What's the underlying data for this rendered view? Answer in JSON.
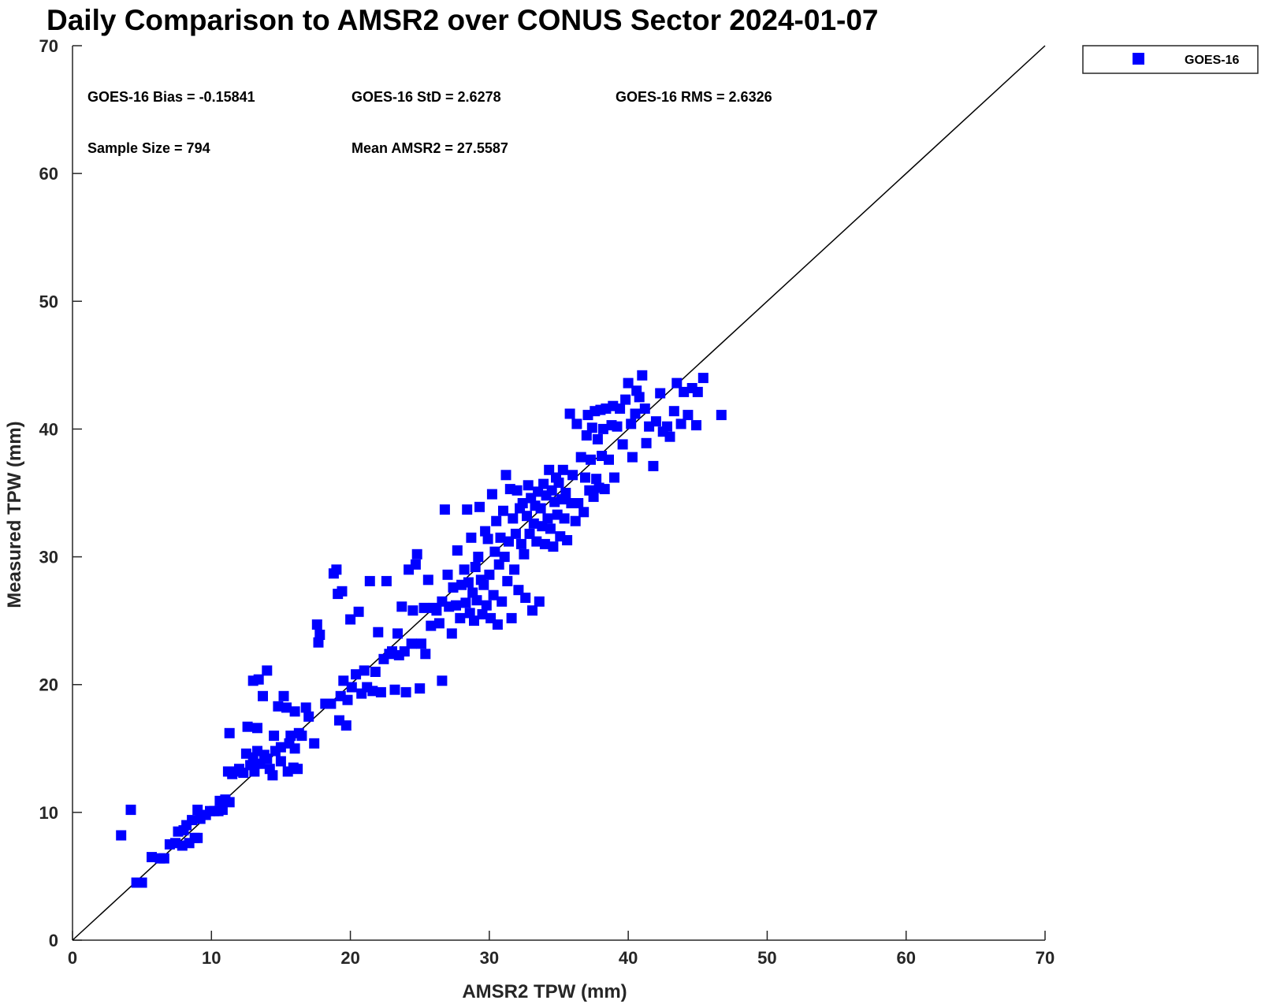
{
  "chart_data": {
    "type": "scatter",
    "title": "Daily Comparison to AMSR2 over CONUS Sector 2024-01-07",
    "xlabel": "AMSR2 TPW (mm)",
    "ylabel": "Measured TPW (mm)",
    "xlim": [
      0,
      70
    ],
    "ylim": [
      0,
      70
    ],
    "xticks": [
      "0",
      "10",
      "20",
      "30",
      "40",
      "50",
      "60",
      "70"
    ],
    "yticks": [
      "0",
      "10",
      "20",
      "30",
      "40",
      "50",
      "60",
      "70"
    ],
    "grid": false,
    "legend": {
      "placement": "top-right outside",
      "entries": [
        "GOES-16"
      ]
    },
    "reference_line": "1:1",
    "stats": {
      "bias": "GOES-16 Bias = -0.15841",
      "std": "GOES-16 StD = 2.6278",
      "rms": "GOES-16 RMS = 2.6326",
      "sample": "Sample Size = 794",
      "mean": "Mean AMSR2 = 27.5587"
    },
    "series": [
      {
        "name": "GOES-16",
        "color": "#0000ff",
        "marker": "square",
        "points": [
          [
            3.5,
            8.2
          ],
          [
            4.2,
            10.2
          ],
          [
            4.6,
            4.5
          ],
          [
            5.0,
            4.5
          ],
          [
            5.7,
            6.5
          ],
          [
            6.3,
            6.4
          ],
          [
            6.6,
            6.4
          ],
          [
            7.0,
            7.5
          ],
          [
            7.4,
            7.6
          ],
          [
            7.6,
            8.5
          ],
          [
            7.9,
            7.4
          ],
          [
            8.0,
            8.6
          ],
          [
            8.2,
            9.0
          ],
          [
            8.4,
            7.6
          ],
          [
            8.6,
            9.4
          ],
          [
            8.8,
            8.0
          ],
          [
            9.0,
            8.0
          ],
          [
            9.0,
            10.2
          ],
          [
            9.2,
            9.5
          ],
          [
            9.6,
            9.8
          ],
          [
            9.9,
            10.1
          ],
          [
            10.2,
            10.1
          ],
          [
            10.5,
            10.1
          ],
          [
            10.6,
            10.9
          ],
          [
            10.8,
            10.2
          ],
          [
            11.0,
            11.0
          ],
          [
            11.3,
            10.8
          ],
          [
            11.2,
            13.2
          ],
          [
            11.3,
            16.2
          ],
          [
            11.5,
            13.0
          ],
          [
            11.8,
            13.2
          ],
          [
            12.0,
            13.4
          ],
          [
            12.3,
            13.1
          ],
          [
            12.5,
            14.6
          ],
          [
            12.6,
            16.7
          ],
          [
            12.8,
            13.7
          ],
          [
            13.0,
            14.3
          ],
          [
            13.0,
            20.3
          ],
          [
            13.1,
            13.2
          ],
          [
            13.3,
            14.8
          ],
          [
            13.3,
            16.6
          ],
          [
            13.4,
            20.4
          ],
          [
            13.5,
            13.8
          ],
          [
            13.7,
            19.1
          ],
          [
            13.8,
            14.5
          ],
          [
            14.0,
            14.2
          ],
          [
            14.0,
            21.1
          ],
          [
            14.2,
            13.4
          ],
          [
            14.4,
            12.9
          ],
          [
            14.5,
            16.0
          ],
          [
            14.6,
            14.8
          ],
          [
            14.8,
            18.3
          ],
          [
            15.0,
            15.1
          ],
          [
            15.0,
            14.0
          ],
          [
            15.2,
            19.1
          ],
          [
            15.4,
            18.2
          ],
          [
            15.5,
            13.2
          ],
          [
            15.6,
            15.4
          ],
          [
            15.7,
            16.0
          ],
          [
            15.9,
            13.5
          ],
          [
            16.0,
            17.9
          ],
          [
            16.0,
            15.0
          ],
          [
            16.2,
            13.4
          ],
          [
            16.3,
            16.2
          ],
          [
            16.5,
            16.0
          ],
          [
            16.8,
            18.2
          ],
          [
            17.0,
            17.5
          ],
          [
            17.4,
            15.4
          ],
          [
            17.6,
            24.7
          ],
          [
            17.7,
            23.3
          ],
          [
            17.8,
            23.9
          ],
          [
            18.2,
            18.5
          ],
          [
            18.6,
            18.5
          ],
          [
            18.8,
            28.7
          ],
          [
            19.0,
            29.0
          ],
          [
            19.1,
            27.1
          ],
          [
            19.2,
            17.2
          ],
          [
            19.3,
            19.1
          ],
          [
            19.4,
            27.3
          ],
          [
            19.5,
            20.3
          ],
          [
            19.7,
            16.8
          ],
          [
            19.8,
            18.8
          ],
          [
            20.0,
            25.1
          ],
          [
            20.1,
            19.8
          ],
          [
            20.4,
            20.8
          ],
          [
            20.6,
            25.7
          ],
          [
            20.8,
            19.3
          ],
          [
            21.0,
            21.1
          ],
          [
            21.2,
            19.8
          ],
          [
            21.4,
            28.1
          ],
          [
            21.6,
            19.5
          ],
          [
            21.8,
            21.0
          ],
          [
            22.0,
            24.1
          ],
          [
            22.2,
            19.4
          ],
          [
            22.4,
            22.0
          ],
          [
            22.6,
            28.1
          ],
          [
            22.8,
            22.4
          ],
          [
            23.0,
            22.6
          ],
          [
            23.2,
            19.6
          ],
          [
            23.4,
            24.0
          ],
          [
            23.5,
            22.3
          ],
          [
            23.7,
            26.1
          ],
          [
            23.9,
            22.6
          ],
          [
            24.0,
            19.4
          ],
          [
            24.2,
            29.0
          ],
          [
            24.4,
            23.2
          ],
          [
            24.5,
            25.8
          ],
          [
            24.7,
            29.4
          ],
          [
            24.8,
            30.2
          ],
          [
            25.0,
            19.7
          ],
          [
            25.1,
            23.2
          ],
          [
            25.3,
            26.0
          ],
          [
            25.4,
            22.4
          ],
          [
            25.6,
            28.2
          ],
          [
            25.8,
            24.6
          ],
          [
            26.0,
            26.0
          ],
          [
            26.2,
            25.8
          ],
          [
            26.4,
            24.8
          ],
          [
            26.6,
            26.5
          ],
          [
            26.6,
            20.3
          ],
          [
            26.8,
            33.7
          ],
          [
            27.0,
            28.6
          ],
          [
            27.1,
            26.1
          ],
          [
            27.3,
            24.0
          ],
          [
            27.4,
            27.6
          ],
          [
            27.6,
            26.2
          ],
          [
            27.7,
            30.5
          ],
          [
            27.9,
            25.2
          ],
          [
            28.0,
            27.8
          ],
          [
            28.2,
            29.0
          ],
          [
            28.3,
            26.4
          ],
          [
            28.4,
            33.7
          ],
          [
            28.5,
            28.0
          ],
          [
            28.6,
            25.6
          ],
          [
            28.7,
            31.5
          ],
          [
            28.8,
            27.2
          ],
          [
            28.9,
            25.0
          ],
          [
            29.0,
            29.2
          ],
          [
            29.1,
            26.6
          ],
          [
            29.2,
            30.0
          ],
          [
            29.3,
            33.9
          ],
          [
            29.4,
            28.2
          ],
          [
            29.5,
            25.5
          ],
          [
            29.6,
            27.8
          ],
          [
            29.7,
            32.0
          ],
          [
            29.8,
            26.2
          ],
          [
            29.9,
            31.4
          ],
          [
            30.0,
            28.6
          ],
          [
            30.1,
            25.2
          ],
          [
            30.2,
            34.9
          ],
          [
            30.3,
            27.0
          ],
          [
            30.4,
            30.4
          ],
          [
            30.5,
            32.8
          ],
          [
            30.6,
            24.7
          ],
          [
            30.7,
            29.4
          ],
          [
            30.8,
            31.5
          ],
          [
            30.9,
            26.5
          ],
          [
            31.0,
            33.6
          ],
          [
            31.1,
            30.0
          ],
          [
            31.2,
            36.4
          ],
          [
            31.3,
            28.1
          ],
          [
            31.4,
            31.2
          ],
          [
            31.5,
            35.3
          ],
          [
            31.6,
            25.2
          ],
          [
            31.7,
            33.0
          ],
          [
            31.8,
            29.0
          ],
          [
            31.9,
            31.8
          ],
          [
            32.0,
            35.2
          ],
          [
            32.1,
            27.4
          ],
          [
            32.2,
            33.8
          ],
          [
            32.3,
            31.0
          ],
          [
            32.4,
            34.2
          ],
          [
            32.5,
            30.2
          ],
          [
            32.6,
            26.8
          ],
          [
            32.7,
            33.2
          ],
          [
            32.8,
            35.6
          ],
          [
            32.9,
            31.8
          ],
          [
            33.0,
            34.6
          ],
          [
            33.1,
            25.8
          ],
          [
            33.2,
            32.6
          ],
          [
            33.3,
            34.0
          ],
          [
            33.4,
            31.2
          ],
          [
            33.5,
            35.1
          ],
          [
            33.6,
            26.5
          ],
          [
            33.7,
            33.8
          ],
          [
            33.8,
            32.4
          ],
          [
            33.9,
            35.7
          ],
          [
            34.0,
            31.0
          ],
          [
            34.1,
            34.8
          ],
          [
            34.2,
            33.0
          ],
          [
            34.3,
            36.8
          ],
          [
            34.4,
            32.2
          ],
          [
            34.5,
            35.2
          ],
          [
            34.6,
            30.8
          ],
          [
            34.7,
            34.3
          ],
          [
            34.8,
            36.2
          ],
          [
            34.9,
            33.3
          ],
          [
            35.0,
            35.8
          ],
          [
            35.1,
            31.6
          ],
          [
            35.2,
            34.5
          ],
          [
            35.3,
            36.8
          ],
          [
            35.4,
            33.0
          ],
          [
            35.5,
            35.0
          ],
          [
            35.6,
            31.3
          ],
          [
            35.8,
            41.2
          ],
          [
            35.9,
            34.2
          ],
          [
            36.0,
            36.4
          ],
          [
            36.2,
            32.8
          ],
          [
            36.3,
            40.4
          ],
          [
            36.4,
            34.2
          ],
          [
            36.6,
            37.8
          ],
          [
            36.8,
            33.5
          ],
          [
            36.9,
            36.2
          ],
          [
            37.0,
            39.5
          ],
          [
            37.1,
            41.1
          ],
          [
            37.2,
            35.2
          ],
          [
            37.3,
            37.6
          ],
          [
            37.4,
            40.1
          ],
          [
            37.5,
            34.7
          ],
          [
            37.6,
            41.4
          ],
          [
            37.7,
            36.1
          ],
          [
            37.8,
            39.2
          ],
          [
            37.9,
            35.4
          ],
          [
            38.0,
            41.5
          ],
          [
            38.1,
            37.9
          ],
          [
            38.2,
            40.0
          ],
          [
            38.3,
            35.3
          ],
          [
            38.4,
            41.6
          ],
          [
            38.6,
            37.6
          ],
          [
            38.8,
            40.3
          ],
          [
            38.9,
            41.8
          ],
          [
            39.0,
            36.2
          ],
          [
            39.2,
            40.2
          ],
          [
            39.4,
            41.6
          ],
          [
            39.6,
            38.8
          ],
          [
            39.8,
            42.3
          ],
          [
            40.0,
            43.6
          ],
          [
            40.2,
            40.4
          ],
          [
            40.3,
            37.8
          ],
          [
            40.5,
            41.2
          ],
          [
            40.6,
            43.0
          ],
          [
            40.8,
            42.5
          ],
          [
            41.0,
            44.2
          ],
          [
            41.2,
            41.6
          ],
          [
            41.3,
            38.9
          ],
          [
            41.5,
            40.2
          ],
          [
            41.8,
            37.1
          ],
          [
            42.0,
            40.6
          ],
          [
            42.3,
            42.8
          ],
          [
            42.5,
            39.8
          ],
          [
            42.8,
            40.2
          ],
          [
            43.0,
            39.4
          ],
          [
            43.3,
            41.4
          ],
          [
            43.5,
            43.6
          ],
          [
            43.8,
            40.4
          ],
          [
            44.0,
            42.9
          ],
          [
            44.3,
            41.1
          ],
          [
            44.6,
            43.2
          ],
          [
            44.9,
            40.3
          ],
          [
            45.0,
            42.9
          ],
          [
            45.4,
            44.0
          ],
          [
            46.7,
            41.1
          ]
        ]
      }
    ]
  }
}
